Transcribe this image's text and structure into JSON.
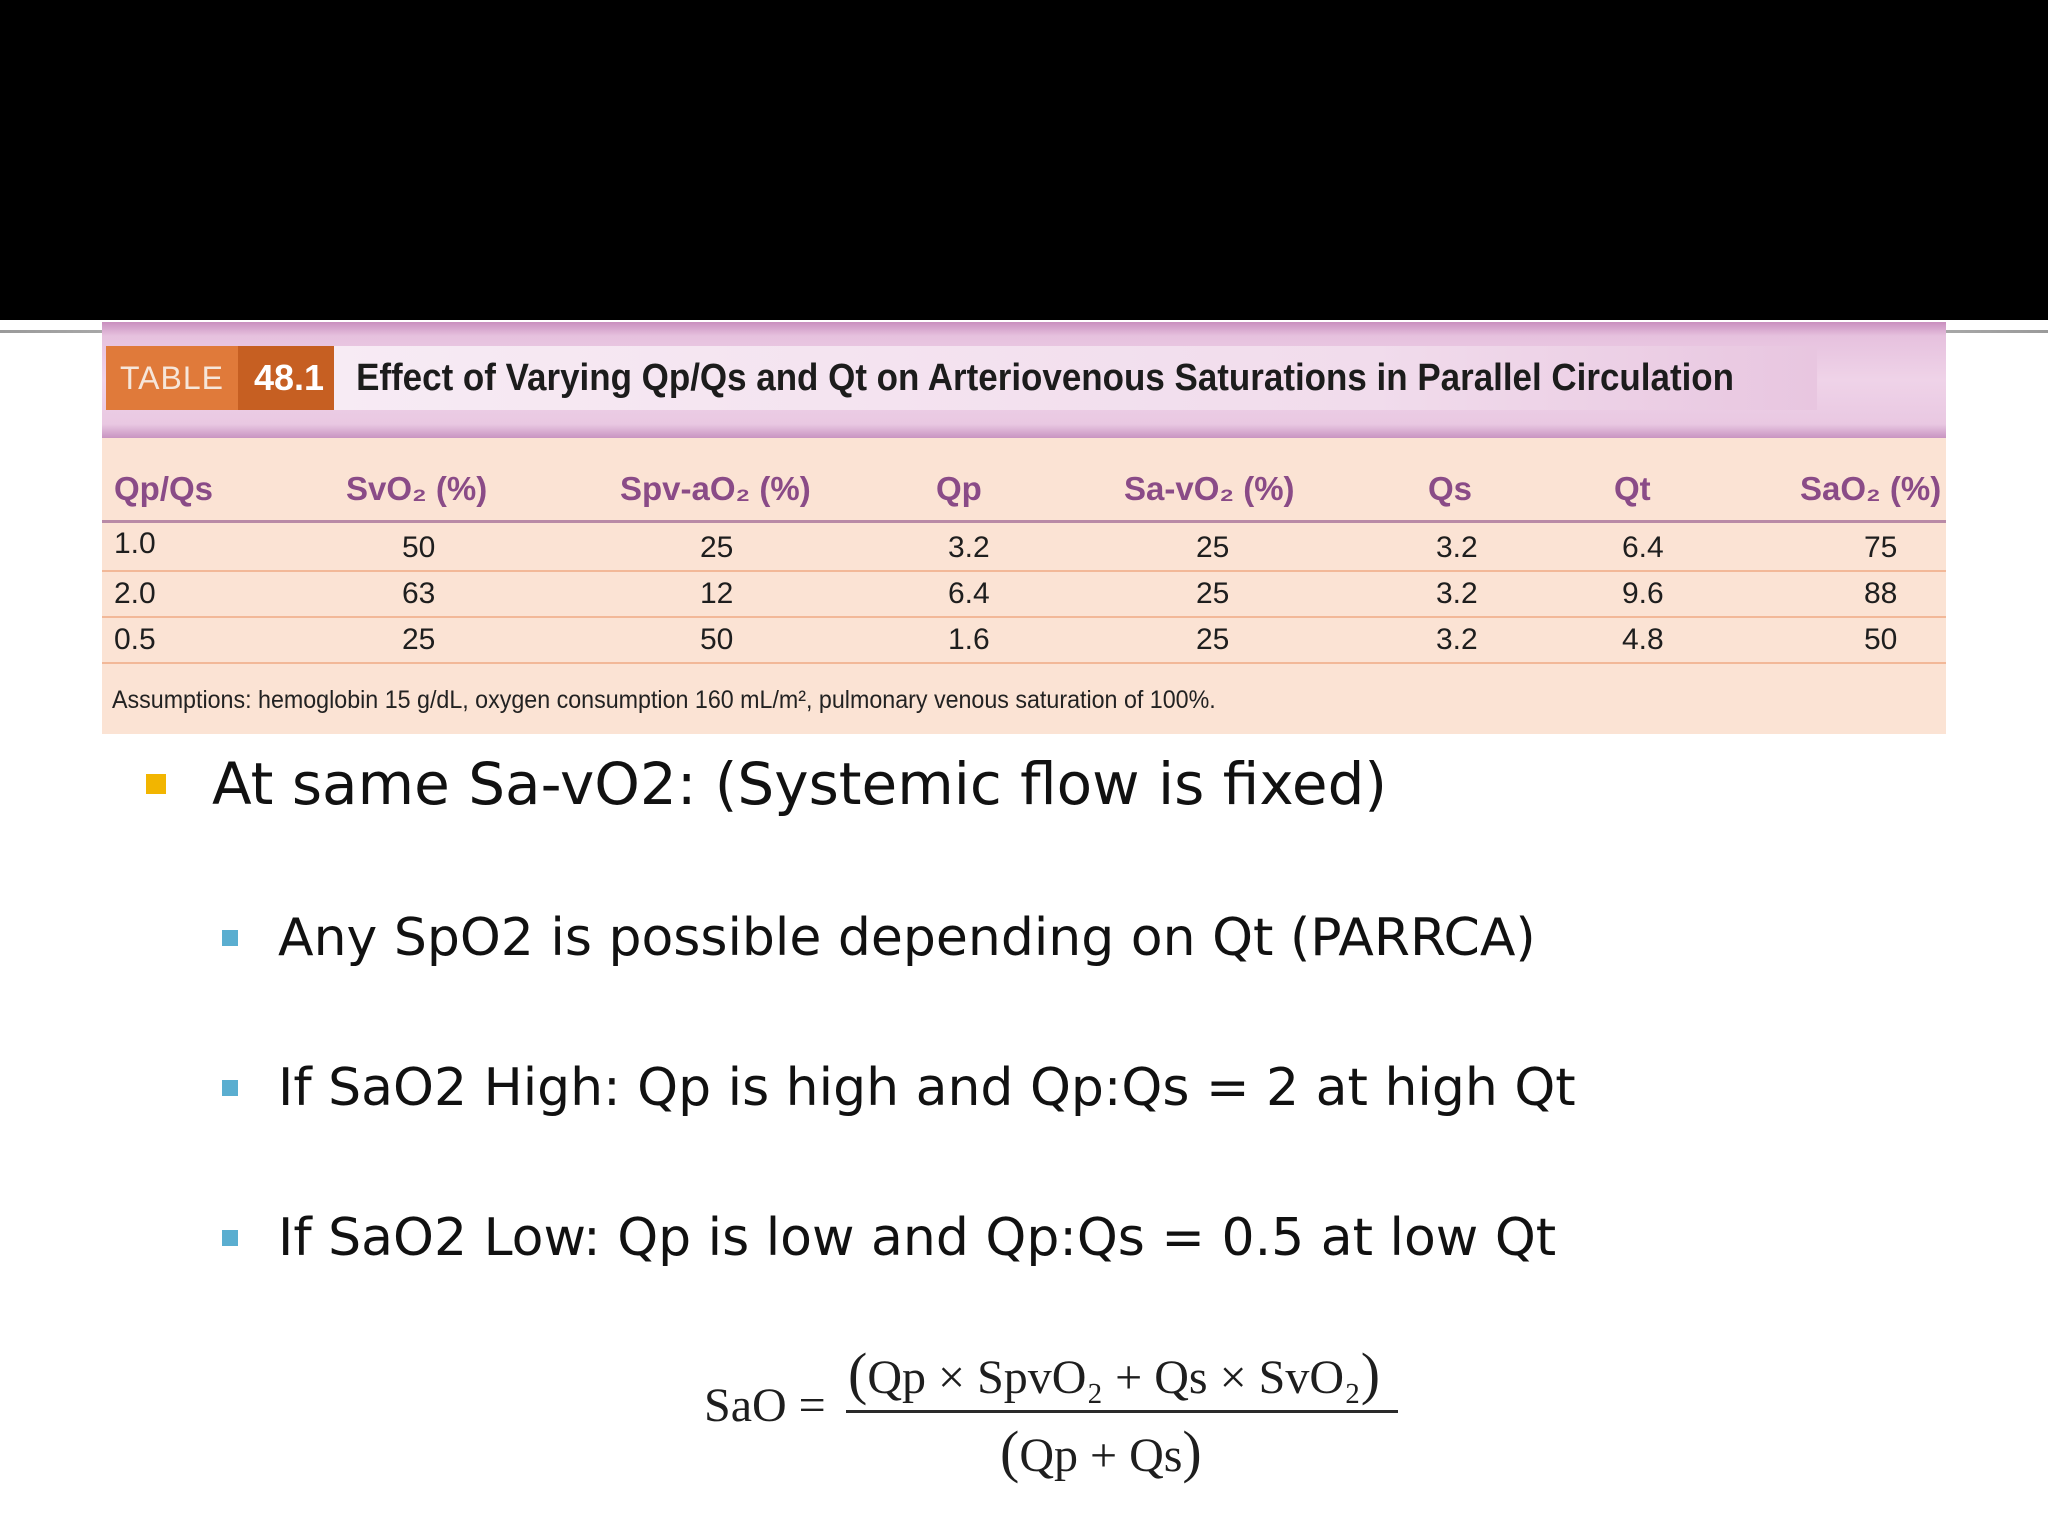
{
  "table": {
    "tag_label": "TABLE",
    "tag_number": "48.1",
    "title": "Effect of Varying Qp/Qs and Qt on Arteriovenous Saturations in Parallel Circulation",
    "columns": [
      "Qp/Qs",
      "SvO₂ (%)",
      "Spv-aO₂ (%)",
      "Qp",
      "Sa-vO₂ (%)",
      "Qs",
      "Qt",
      "SaO₂ (%)"
    ],
    "rows": [
      [
        "1.0",
        "50",
        "25",
        "3.2",
        "25",
        "3.2",
        "6.4",
        "75"
      ],
      [
        "2.0",
        "63",
        "12",
        "6.4",
        "25",
        "3.2",
        "9.6",
        "88"
      ],
      [
        "0.5",
        "25",
        "50",
        "1.6",
        "25",
        "3.2",
        "4.8",
        "50"
      ]
    ],
    "footnote": "Assumptions: hemoglobin 15 g/dL, oxygen consumption 160 mL/m², pulmonary venous saturation of 100%."
  },
  "bullets": {
    "main": "At same Sa-vO2: (Systemic flow is fixed)",
    "sub": [
      "Any SpO2 is possible depending on Qt (PARRCA)",
      "If SaO2 High: Qp is high and Qp:Qs = 2 at high Qt",
      "If SaO2 Low: Qp is low and Qp:Qs = 0.5 at low Qt"
    ]
  },
  "formula": {
    "lhs": "SaO =",
    "numerator": "Qp × SpvO₂ + Qs × SvO₂",
    "denominator": "Qp + Qs"
  },
  "colors": {
    "top_band": "#000000",
    "main_bullet": "#f2b500",
    "sub_bullet": "#5aaed0",
    "table_header_text": "#8a4b87",
    "table_body_bg": "#fbe3d4",
    "table_tag": "#e07a3a"
  }
}
